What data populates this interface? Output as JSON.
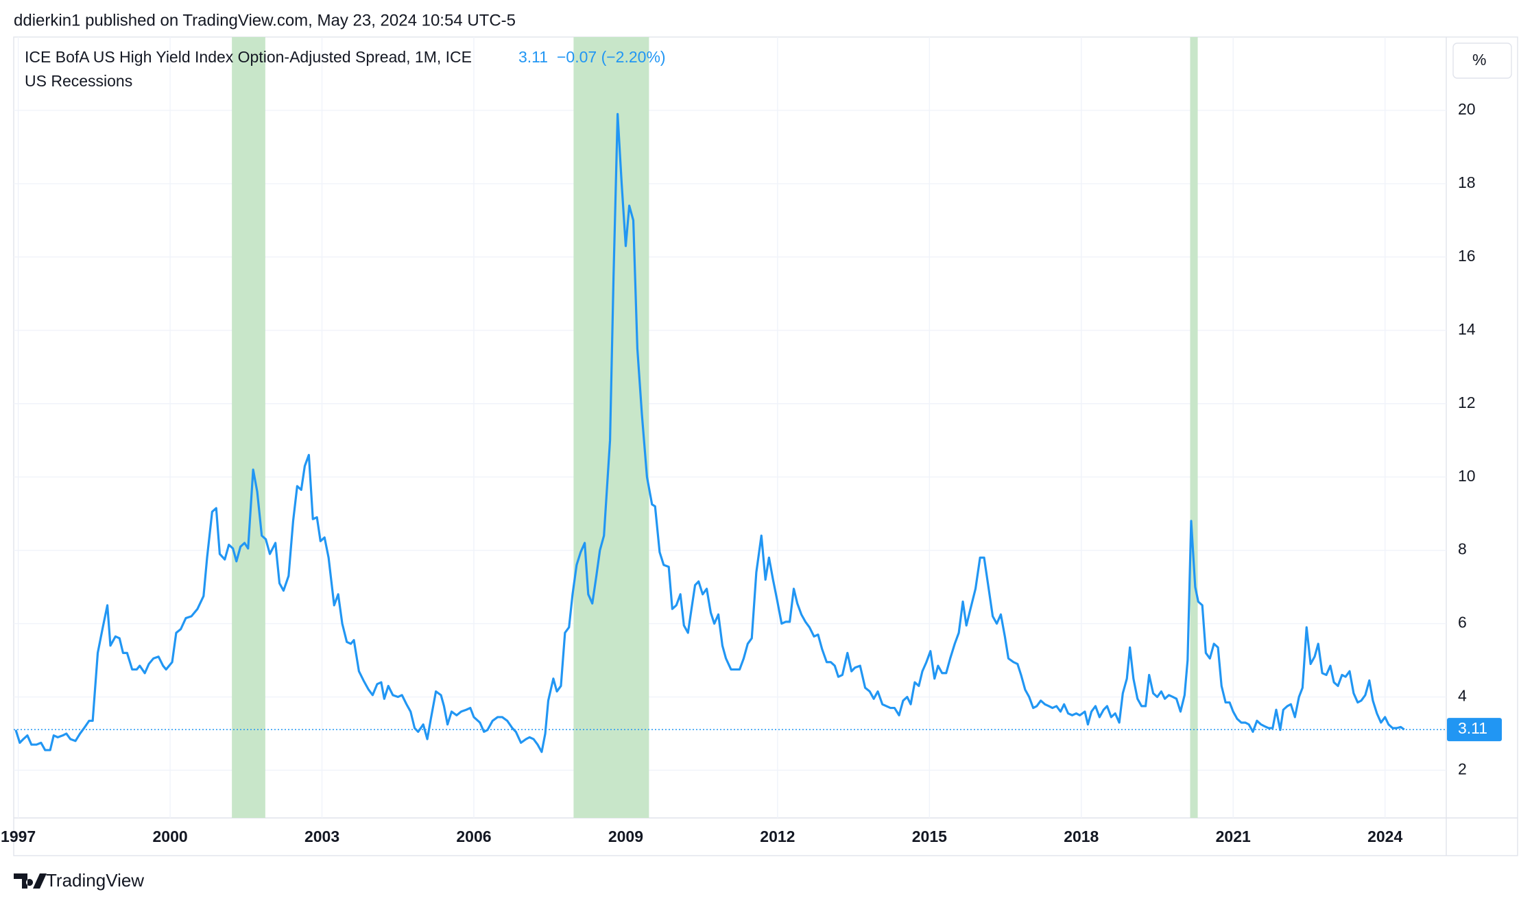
{
  "header": {
    "publisher": "ddierkin1 published on TradingView.com, May 23, 2024 10:54 UTC-5"
  },
  "footer": {
    "brand": "TradingView"
  },
  "chart_data": {
    "type": "line",
    "unit": "%",
    "change": "−0.07 (−2.20%)",
    "xlim": [
      1996.91,
      2025.21
    ],
    "ylim": [
      0.7,
      22
    ],
    "xticks": [
      1997,
      2000,
      2003,
      2006,
      2009,
      2012,
      2015,
      2018,
      2021,
      2024
    ],
    "yticks": [
      2,
      4,
      6,
      8,
      10,
      12,
      14,
      16,
      18,
      20
    ],
    "grid": true,
    "recessions": {
      "name": "US Recessions",
      "color": "#c8e6c9",
      "ranges": [
        [
          2001.22,
          2001.88
        ],
        [
          2007.97,
          2009.46
        ],
        [
          2020.15,
          2020.3
        ]
      ]
    },
    "series": [
      {
        "name": "ICE BofA US High Yield Index Option-Adjusted Spread, 1M, ICE",
        "color": "#2196f3",
        "x": [
          1996.95,
          1997.03,
          1997.1,
          1997.18,
          1997.26,
          1997.36,
          1997.45,
          1997.53,
          1997.63,
          1997.7,
          1997.78,
          1997.88,
          1997.95,
          1998.03,
          1998.13,
          1998.22,
          1998.3,
          1998.4,
          1998.47,
          1998.57,
          1998.67,
          1998.76,
          1998.82,
          1998.92,
          1999.0,
          1999.07,
          1999.15,
          1999.25,
          1999.34,
          1999.4,
          1999.5,
          1999.58,
          1999.67,
          1999.77,
          1999.86,
          1999.92,
          2000.04,
          2000.12,
          2000.21,
          2000.31,
          2000.42,
          2000.54,
          2000.66,
          2000.73,
          2000.83,
          2000.91,
          2000.98,
          2001.08,
          2001.16,
          2001.24,
          2001.31,
          2001.39,
          2001.47,
          2001.54,
          2001.64,
          2001.72,
          2001.81,
          2001.89,
          2001.97,
          2002.08,
          2002.16,
          2002.24,
          2002.34,
          2002.43,
          2002.51,
          2002.59,
          2002.66,
          2002.74,
          2002.82,
          2002.9,
          2002.97,
          2003.05,
          2003.13,
          2003.24,
          2003.32,
          2003.4,
          2003.49,
          2003.57,
          2003.63,
          2003.73,
          2003.82,
          2003.92,
          2004.0,
          2004.09,
          2004.17,
          2004.23,
          2004.31,
          2004.4,
          2004.5,
          2004.58,
          2004.67,
          2004.75,
          2004.83,
          2004.9,
          2005.0,
          2005.08,
          2005.15,
          2005.25,
          2005.35,
          2005.41,
          2005.48,
          2005.56,
          2005.66,
          2005.75,
          2005.85,
          2005.93,
          2006.0,
          2006.12,
          2006.2,
          2006.27,
          2006.37,
          2006.47,
          2006.56,
          2006.66,
          2006.76,
          2006.83,
          2006.93,
          2007.03,
          2007.1,
          2007.18,
          2007.26,
          2007.34,
          2007.41,
          2007.47,
          2007.57,
          2007.64,
          2007.72,
          2007.8,
          2007.88,
          2007.95,
          2008.03,
          2008.11,
          2008.19,
          2008.26,
          2008.34,
          2008.42,
          2008.49,
          2008.57,
          2008.69,
          2008.76,
          2008.84,
          2008.92,
          2009.0,
          2009.07,
          2009.15,
          2009.23,
          2009.32,
          2009.42,
          2009.52,
          2009.58,
          2009.67,
          2009.75,
          2009.85,
          2009.92,
          2010.0,
          2010.08,
          2010.15,
          2010.23,
          2010.31,
          2010.37,
          2010.44,
          2010.52,
          2010.6,
          2010.68,
          2010.75,
          2010.83,
          2010.91,
          2010.98,
          2011.08,
          2011.16,
          2011.25,
          2011.33,
          2011.41,
          2011.49,
          2011.58,
          2011.68,
          2011.76,
          2011.83,
          2011.91,
          2011.99,
          2012.08,
          2012.16,
          2012.24,
          2012.32,
          2012.39,
          2012.47,
          2012.55,
          2012.63,
          2012.72,
          2012.8,
          2012.88,
          2012.97,
          2013.05,
          2013.13,
          2013.2,
          2013.28,
          2013.38,
          2013.46,
          2013.53,
          2013.63,
          2013.73,
          2013.82,
          2013.9,
          2013.98,
          2014.07,
          2014.15,
          2014.23,
          2014.31,
          2014.4,
          2014.48,
          2014.56,
          2014.63,
          2014.71,
          2014.79,
          2014.86,
          2014.94,
          2015.02,
          2015.1,
          2015.17,
          2015.25,
          2015.33,
          2015.41,
          2015.5,
          2015.58,
          2015.66,
          2015.73,
          2015.81,
          2015.91,
          2016.0,
          2016.08,
          2016.16,
          2016.25,
          2016.33,
          2016.41,
          2016.49,
          2016.56,
          2016.66,
          2016.74,
          2016.81,
          2016.89,
          2016.97,
          2017.05,
          2017.12,
          2017.2,
          2017.28,
          2017.36,
          2017.43,
          2017.51,
          2017.59,
          2017.66,
          2017.74,
          2017.82,
          2017.9,
          2017.97,
          2018.07,
          2018.13,
          2018.2,
          2018.28,
          2018.36,
          2018.44,
          2018.51,
          2018.59,
          2018.67,
          2018.75,
          2018.82,
          2018.9,
          2018.96,
          2019.03,
          2019.11,
          2019.19,
          2019.27,
          2019.34,
          2019.42,
          2019.5,
          2019.58,
          2019.65,
          2019.73,
          2019.81,
          2019.88,
          2019.96,
          2020.04,
          2020.1,
          2020.17,
          2020.25,
          2020.31,
          2020.39,
          2020.46,
          2020.54,
          2020.62,
          2020.7,
          2020.77,
          2020.85,
          2020.93,
          2021.0,
          2021.08,
          2021.16,
          2021.24,
          2021.31,
          2021.39,
          2021.47,
          2021.55,
          2021.62,
          2021.7,
          2021.78,
          2021.85,
          2021.93,
          2021.99,
          2022.07,
          2022.14,
          2022.22,
          2022.3,
          2022.37,
          2022.45,
          2022.53,
          2022.61,
          2022.68,
          2022.76,
          2022.84,
          2022.92,
          2022.99,
          2023.07,
          2023.15,
          2023.22,
          2023.3,
          2023.38,
          2023.46,
          2023.53,
          2023.61,
          2023.69,
          2023.76,
          2023.84,
          2023.92,
          2024.0,
          2024.07,
          2024.15,
          2024.23,
          2024.31,
          2024.38
        ],
        "values": [
          3.1,
          2.75,
          2.85,
          2.95,
          2.7,
          2.7,
          2.75,
          2.55,
          2.55,
          2.95,
          2.9,
          2.95,
          3.0,
          2.85,
          2.8,
          3.0,
          3.15,
          3.35,
          3.35,
          5.2,
          5.9,
          6.5,
          5.4,
          5.65,
          5.6,
          5.2,
          5.2,
          4.75,
          4.75,
          4.85,
          4.65,
          4.9,
          5.05,
          5.1,
          4.85,
          4.75,
          4.95,
          5.75,
          5.85,
          6.15,
          6.2,
          6.4,
          6.75,
          7.8,
          9.05,
          9.15,
          7.9,
          7.75,
          8.15,
          8.05,
          7.7,
          8.1,
          8.2,
          8.05,
          10.2,
          9.6,
          8.4,
          8.3,
          7.9,
          8.2,
          7.1,
          6.9,
          7.3,
          8.8,
          9.75,
          9.65,
          10.3,
          10.6,
          8.85,
          8.9,
          8.25,
          8.35,
          7.8,
          6.5,
          6.8,
          6.0,
          5.5,
          5.45,
          5.55,
          4.7,
          4.45,
          4.2,
          4.05,
          4.35,
          4.4,
          3.95,
          4.3,
          4.05,
          4.0,
          4.05,
          3.8,
          3.6,
          3.15,
          3.05,
          3.25,
          2.85,
          3.4,
          4.15,
          4.05,
          3.75,
          3.25,
          3.6,
          3.5,
          3.6,
          3.65,
          3.7,
          3.45,
          3.3,
          3.05,
          3.1,
          3.35,
          3.45,
          3.45,
          3.35,
          3.15,
          3.05,
          2.75,
          2.85,
          2.9,
          2.85,
          2.7,
          2.5,
          3.0,
          3.9,
          4.5,
          4.15,
          4.3,
          5.75,
          5.9,
          6.8,
          7.6,
          7.95,
          8.2,
          6.8,
          6.55,
          7.3,
          8.0,
          8.4,
          11.0,
          15.5,
          19.9,
          18.0,
          16.3,
          17.4,
          17.0,
          13.5,
          11.7,
          10.0,
          9.25,
          9.2,
          7.95,
          7.6,
          7.55,
          6.4,
          6.5,
          6.8,
          5.95,
          5.75,
          6.5,
          7.05,
          7.15,
          6.8,
          6.95,
          6.3,
          6.0,
          6.25,
          5.4,
          5.05,
          4.75,
          4.75,
          4.75,
          5.05,
          5.45,
          5.6,
          7.4,
          8.4,
          7.2,
          7.8,
          7.2,
          6.65,
          6.0,
          6.05,
          6.05,
          6.95,
          6.55,
          6.25,
          6.05,
          5.9,
          5.65,
          5.7,
          5.3,
          4.95,
          4.95,
          4.85,
          4.55,
          4.6,
          5.2,
          4.7,
          4.8,
          4.85,
          4.25,
          4.15,
          3.95,
          4.15,
          3.8,
          3.75,
          3.7,
          3.7,
          3.5,
          3.9,
          4.0,
          3.8,
          4.4,
          4.3,
          4.7,
          4.95,
          5.25,
          4.5,
          4.85,
          4.65,
          4.65,
          5.05,
          5.45,
          5.75,
          6.6,
          5.95,
          6.4,
          6.95,
          7.8,
          7.8,
          7.05,
          6.2,
          6.0,
          6.25,
          5.65,
          5.05,
          4.95,
          4.9,
          4.6,
          4.2,
          4.0,
          3.7,
          3.75,
          3.9,
          3.8,
          3.75,
          3.7,
          3.75,
          3.6,
          3.8,
          3.55,
          3.5,
          3.55,
          3.5,
          3.6,
          3.25,
          3.6,
          3.75,
          3.45,
          3.65,
          3.75,
          3.45,
          3.55,
          3.3,
          4.1,
          4.5,
          5.35,
          4.5,
          3.95,
          3.75,
          3.75,
          4.6,
          4.1,
          4.0,
          4.15,
          3.95,
          4.05,
          4.0,
          3.95,
          3.6,
          4.05,
          5.0,
          8.8,
          7.0,
          6.6,
          6.5,
          5.2,
          5.05,
          5.45,
          5.35,
          4.3,
          3.85,
          3.85,
          3.6,
          3.4,
          3.3,
          3.3,
          3.25,
          3.05,
          3.35,
          3.25,
          3.2,
          3.15,
          3.15,
          3.65,
          3.1,
          3.65,
          3.75,
          3.8,
          3.45,
          4.0,
          4.25,
          5.9,
          4.9,
          5.1,
          5.45,
          4.65,
          4.6,
          4.85,
          4.4,
          4.3,
          4.6,
          4.55,
          4.7,
          4.1,
          3.85,
          3.9,
          4.05,
          4.45,
          3.9,
          3.55,
          3.3,
          3.45,
          3.25,
          3.15,
          3.15,
          3.18,
          3.11
        ]
      }
    ]
  }
}
